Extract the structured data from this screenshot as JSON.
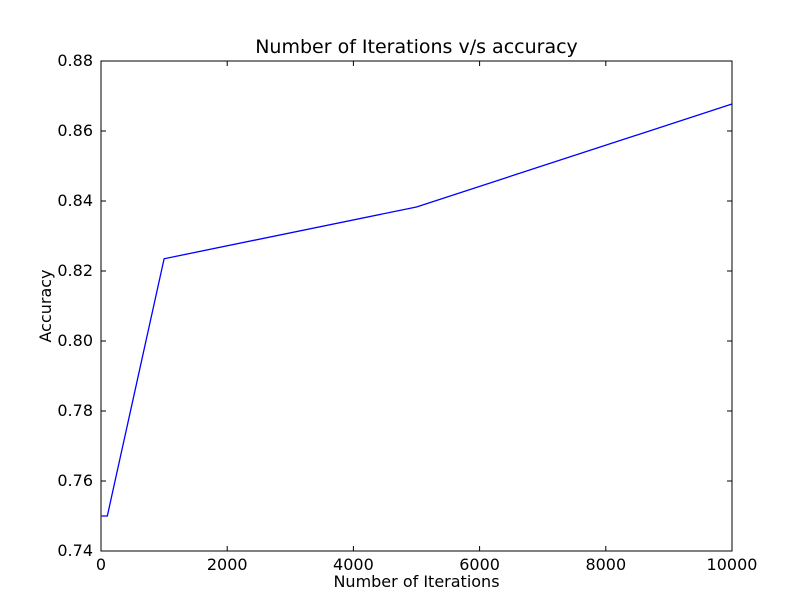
{
  "chart_data": {
    "type": "line",
    "title": "Number of Iterations v/s accuracy",
    "xlabel": "Number of Iterations",
    "ylabel": "Accuracy",
    "xlim": [
      0,
      10000
    ],
    "ylim": [
      0.74,
      0.88
    ],
    "x_ticks": [
      0,
      2000,
      4000,
      6000,
      8000,
      10000
    ],
    "x_tick_labels": [
      "0",
      "2000",
      "4000",
      "6000",
      "8000",
      "10000"
    ],
    "y_ticks": [
      0.74,
      0.76,
      0.78,
      0.8,
      0.82,
      0.84,
      0.86,
      0.88
    ],
    "y_tick_labels": [
      "0.74",
      "0.76",
      "0.78",
      "0.80",
      "0.82",
      "0.84",
      "0.86",
      "0.88"
    ],
    "grid": false,
    "series": [
      {
        "color": "#0000ff",
        "x": [
          10,
          100,
          1000,
          5000,
          10000
        ],
        "y": [
          0.75,
          0.75,
          0.8235,
          0.8383,
          0.8677
        ]
      }
    ]
  }
}
